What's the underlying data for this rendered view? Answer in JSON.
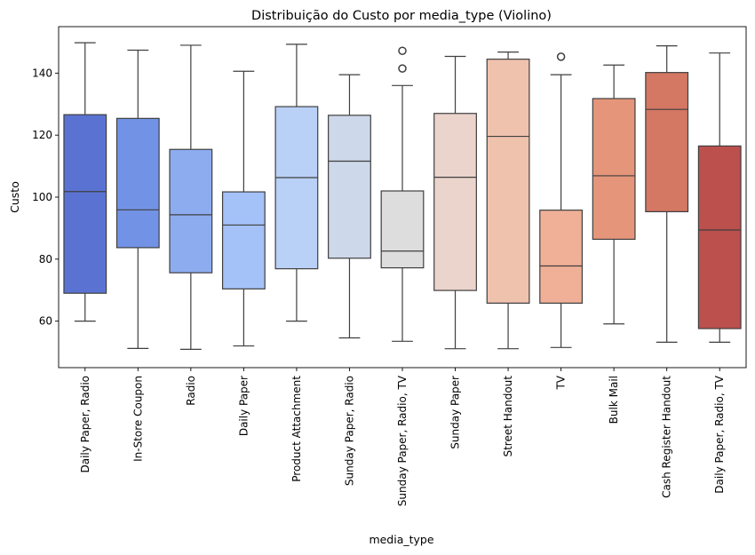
{
  "chart_data": {
    "type": "box",
    "title": "Distribuição do Custo por media_type (Violino)",
    "xlabel": "media_type",
    "ylabel": "Custo",
    "ylim": [
      45,
      155
    ],
    "yticks": [
      60,
      80,
      100,
      120,
      140
    ],
    "grid": false,
    "categories": [
      "Daily Paper, Radio",
      "In-Store Coupon",
      "Radio",
      "Daily Paper",
      "Product Attachment",
      "Sunday Paper, Radio",
      "Sunday Paper, Radio, TV",
      "Sunday Paper",
      "Street Handout",
      "TV",
      "Bulk Mail",
      "Cash Register Handout",
      "Daily Paper, Radio, TV"
    ],
    "boxes": [
      {
        "whisker_low": 60.0,
        "q1": 69.0,
        "median": 101.8,
        "q3": 126.6,
        "whisker_high": 149.8,
        "outliers": [],
        "color": "#5a73d3"
      },
      {
        "whisker_low": 51.2,
        "q1": 83.7,
        "median": 95.9,
        "q3": 125.4,
        "whisker_high": 147.4,
        "outliers": [],
        "color": "#7293e5"
      },
      {
        "whisker_low": 50.9,
        "q1": 75.6,
        "median": 94.3,
        "q3": 115.4,
        "whisker_high": 149.0,
        "outliers": [],
        "color": "#8dacf0"
      },
      {
        "whisker_low": 52.0,
        "q1": 70.4,
        "median": 91.0,
        "q3": 101.7,
        "whisker_high": 140.6,
        "outliers": [],
        "color": "#a4c1f8"
      },
      {
        "whisker_low": 60.0,
        "q1": 76.9,
        "median": 106.3,
        "q3": 129.2,
        "whisker_high": 149.3,
        "outliers": [],
        "color": "#b9d0f7"
      },
      {
        "whisker_low": 54.6,
        "q1": 80.3,
        "median": 111.6,
        "q3": 126.4,
        "whisker_high": 139.5,
        "outliers": [],
        "color": "#cdd8ea"
      },
      {
        "whisker_low": 53.5,
        "q1": 77.2,
        "median": 82.6,
        "q3": 102.0,
        "whisker_high": 136.0,
        "outliers": [
          141.5,
          147.2
        ],
        "color": "#dddddd"
      },
      {
        "whisker_low": 51.1,
        "q1": 69.9,
        "median": 106.4,
        "q3": 127.0,
        "whisker_high": 145.4,
        "outliers": [],
        "color": "#ead4cb"
      },
      {
        "whisker_low": 51.1,
        "q1": 65.8,
        "median": 119.6,
        "q3": 144.5,
        "whisker_high": 146.8,
        "outliers": [],
        "color": "#efc2ae"
      },
      {
        "whisker_low": 51.5,
        "q1": 65.8,
        "median": 77.8,
        "q3": 95.8,
        "whisker_high": 139.5,
        "outliers": [
          145.3
        ],
        "color": "#efb097"
      },
      {
        "whisker_low": 59.1,
        "q1": 86.4,
        "median": 106.9,
        "q3": 131.8,
        "whisker_high": 142.6,
        "outliers": [],
        "color": "#e5957a"
      },
      {
        "whisker_low": 53.2,
        "q1": 95.3,
        "median": 128.3,
        "q3": 140.2,
        "whisker_high": 148.8,
        "outliers": [],
        "color": "#d47763"
      },
      {
        "whisker_low": 53.2,
        "q1": 57.6,
        "median": 89.4,
        "q3": 116.5,
        "whisker_high": 146.5,
        "outliers": [],
        "color": "#bb504d"
      }
    ]
  }
}
